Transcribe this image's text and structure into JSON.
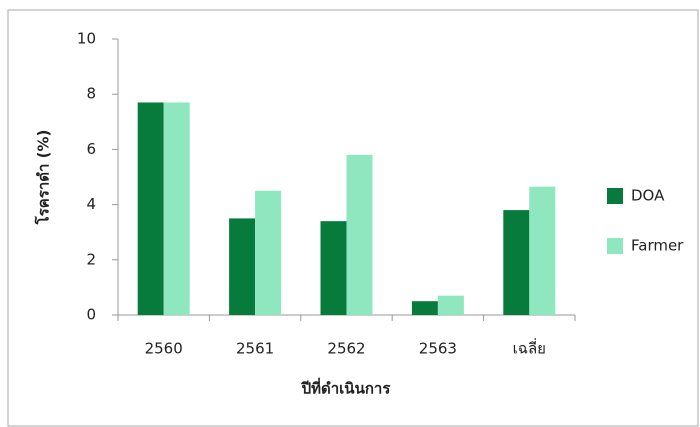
{
  "chart_data": {
    "type": "bar",
    "categories": [
      "2560",
      "2561",
      "2562",
      "2563",
      "เฉลี่ย"
    ],
    "series": [
      {
        "name": "DOA",
        "color": "#077b3c",
        "values": [
          7.7,
          3.5,
          3.4,
          0.5,
          3.8
        ]
      },
      {
        "name": "Farmer",
        "color": "#8fe7bf",
        "values": [
          7.7,
          4.5,
          5.8,
          0.7,
          4.65
        ]
      }
    ],
    "ylim": [
      0,
      10
    ],
    "yticks": [
      0,
      2,
      4,
      6,
      8,
      10
    ],
    "ylabel": "โรคราดำ (%)",
    "xlabel": "ปีที่ดำเนินการ",
    "grid": false
  }
}
